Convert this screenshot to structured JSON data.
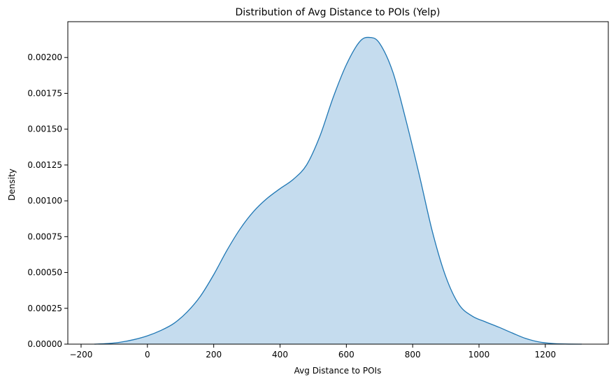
{
  "chart_data": {
    "type": "area",
    "title": "Distribution of Avg Distance to POIs (Yelp)",
    "xlabel": "Avg Distance to POIs",
    "ylabel": "Density",
    "xlim": [
      -240,
      1390
    ],
    "ylim": [
      0,
      0.00225
    ],
    "grid": false,
    "legend": "none",
    "xticks": [
      -200,
      0,
      200,
      400,
      600,
      800,
      1000,
      1200
    ],
    "xtick_labels": [
      "−200",
      "0",
      "200",
      "400",
      "600",
      "800",
      "1000",
      "1200"
    ],
    "yticks": [
      0,
      0.00025,
      0.0005,
      0.00075,
      0.001,
      0.00125,
      0.0015,
      0.00175,
      0.002
    ],
    "ytick_labels": [
      "0.00000",
      "0.00025",
      "0.00050",
      "0.00075",
      "0.00100",
      "0.00125",
      "0.00150",
      "0.00175",
      "0.00200"
    ],
    "series": [
      {
        "line_color": "#1f77b4",
        "fill_color": "#c5dcee",
        "x": [
          -160,
          -120,
          -80,
          -40,
          0,
          40,
          80,
          120,
          160,
          200,
          240,
          280,
          320,
          360,
          400,
          440,
          480,
          520,
          560,
          600,
          640,
          670,
          700,
          740,
          780,
          820,
          860,
          900,
          940,
          980,
          1020,
          1060,
          1100,
          1140,
          1180,
          1220,
          1260,
          1310
        ],
        "values": [
          0.0,
          4e-06,
          1.4e-05,
          3.2e-05,
          5.8e-05,
          9.5e-05,
          0.000145,
          0.000225,
          0.000335,
          0.000485,
          0.000655,
          0.000805,
          0.000925,
          0.001015,
          0.001085,
          0.00115,
          0.00125,
          0.00145,
          0.00172,
          0.00195,
          0.00211,
          0.00214,
          0.0021,
          0.0019,
          0.00156,
          0.00118,
          0.00078,
          0.00047,
          0.000275,
          0.000195,
          0.000155,
          0.000118,
          7.8e-05,
          4e-05,
          1.6e-05,
          5e-06,
          1e-06,
          0.0
        ]
      }
    ]
  }
}
